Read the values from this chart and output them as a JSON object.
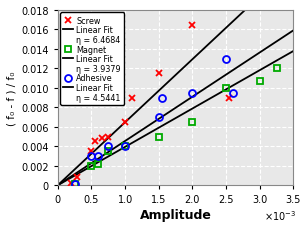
{
  "title": "",
  "xlabel": "Amplitude",
  "ylabel": "( f₀ - f ) / f₀",
  "xlim": [
    0,
    0.0035
  ],
  "ylim": [
    0,
    0.018
  ],
  "screw_x": [
    0.2,
    0.28,
    0.5,
    0.55,
    0.65,
    0.75,
    1.0,
    1.1,
    1.5,
    2.0,
    2.55
  ],
  "screw_y": [
    0.0002,
    0.0008,
    0.0035,
    0.0045,
    0.0048,
    0.005,
    0.0065,
    0.009,
    0.0115,
    0.0165,
    0.009
  ],
  "magnet_x": [
    0.25,
    0.5,
    0.6,
    0.75,
    1.0,
    1.5,
    2.0,
    2.5,
    3.0,
    3.25
  ],
  "magnet_y": [
    0.0001,
    0.002,
    0.0022,
    0.0035,
    0.004,
    0.005,
    0.0065,
    0.01,
    0.0107,
    0.012
  ],
  "adhesive_x": [
    0.25,
    0.5,
    0.6,
    0.75,
    1.0,
    1.5,
    1.55,
    2.0,
    2.5,
    2.6
  ],
  "adhesive_y": [
    0.0001,
    0.003,
    0.003,
    0.004,
    0.004,
    0.007,
    0.009,
    0.0095,
    0.013,
    0.0095
  ],
  "eta_screw": 6.4684,
  "eta_magnet": 3.9379,
  "eta_adhesive": 4.5441,
  "screw_color": "#ff0000",
  "magnet_color": "#00aa00",
  "adhesive_color": "#0000ff",
  "fit_color": "#000000",
  "bg_color": "#e8e8e8",
  "grid_color": "#ffffff",
  "legend_eta_screw": "η = 6.4684",
  "legend_eta_magnet": "η = 3.9379",
  "legend_eta_adhesive": "η = 4.5441",
  "legend_screw": "Screw",
  "legend_magnet": "Magnet",
  "legend_adhesive": "Adhesive",
  "legend_linear": "Linear Fit"
}
